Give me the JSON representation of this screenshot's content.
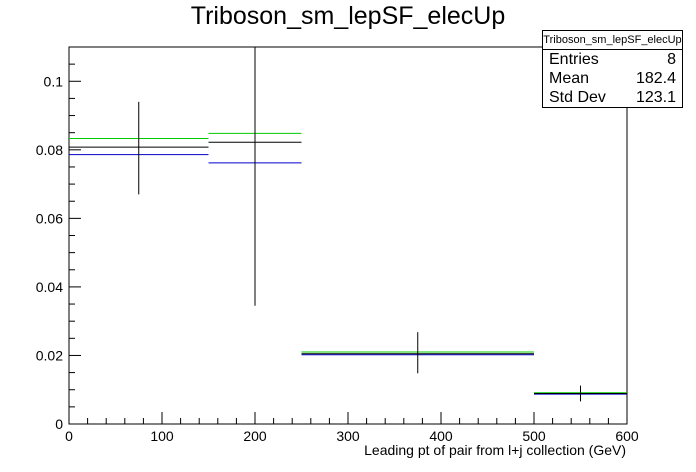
{
  "chart_data": {
    "type": "histogram",
    "title": "Triboson_sm_lepSF_elecUp",
    "xlabel": "Leading pt of pair from l+j collection (GeV)",
    "ylabel": "",
    "xlim": [
      0,
      600
    ],
    "ylim": [
      0,
      0.11
    ],
    "xticks": [
      0,
      100,
      200,
      300,
      400,
      500,
      600
    ],
    "yticks": [
      0,
      0.02,
      0.04,
      0.06,
      0.08,
      0.1
    ],
    "grid": false,
    "bins": [
      {
        "lo": 0,
        "hi": 150,
        "center": 75,
        "value": 0.0808,
        "err_lo": 0.067,
        "err_hi": 0.094,
        "up": 0.0833,
        "down": 0.0786
      },
      {
        "lo": 150,
        "hi": 250,
        "center": 200,
        "value": 0.0822,
        "err_lo": 0.0345,
        "err_hi": 0.11,
        "up": 0.0848,
        "down": 0.0762
      },
      {
        "lo": 250,
        "hi": 500,
        "center": 375,
        "value": 0.0205,
        "err_lo": 0.0148,
        "err_hi": 0.0268,
        "up": 0.021,
        "down": 0.0202
      },
      {
        "lo": 500,
        "hi": 600,
        "center": 550,
        "value": 0.0089,
        "err_lo": 0.0066,
        "err_hi": 0.0112,
        "up": 0.0091,
        "down": 0.0087
      }
    ],
    "colors": {
      "nominal": "#000000",
      "up": "#00cc00",
      "down": "#0000cc"
    }
  },
  "stats": {
    "name": "Triboson_sm_lepSF_elecUp",
    "entries_label": "Entries",
    "entries": "8",
    "mean_label": "Mean",
    "mean": "182.4",
    "std_label": "Std Dev",
    "std": "123.1"
  }
}
